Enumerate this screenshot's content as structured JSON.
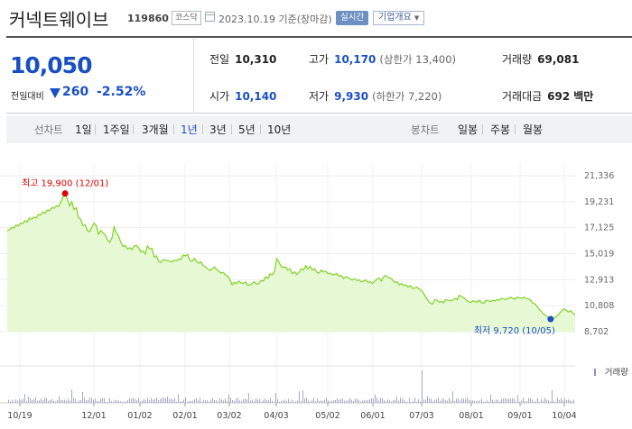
{
  "header": {
    "stock_name": "커넥트웨이브",
    "stock_code": "119860",
    "market_badge": "코스닥",
    "date_text": "2023.10.19 기준(장마감)",
    "live_button": "실시간",
    "corp_button": "기업개요",
    "icons": [
      "calendar-icon",
      "dropdown-triangle-icon"
    ]
  },
  "price": {
    "current": "10,050",
    "change_label": "전일대비",
    "change_value": "260",
    "change_pct": "-2.52%",
    "direction": "down",
    "color": "#1a4fc4"
  },
  "stats": {
    "prev_close_label": "전일",
    "prev_close": "10,310",
    "open_label": "시가",
    "open": "10,140",
    "high_label": "고가",
    "high": "10,170",
    "high_limit": "(상한가 13,400)",
    "low_label": "저가",
    "low": "9,930",
    "low_limit": "(하한가 7,220)",
    "volume_label": "거래량",
    "volume": "69,081",
    "amount_label": "거래대금",
    "amount": "692",
    "amount_unit": "백만"
  },
  "period_bar": {
    "line_chart_label": "선차트",
    "line_periods": [
      "1일",
      "1주일",
      "3개월",
      "1년",
      "3년",
      "5년",
      "10년"
    ],
    "active_period": "1년",
    "candle_label": "봉차트",
    "candle_periods": [
      "일봉",
      "주봉",
      "월봉"
    ]
  },
  "chart_data": {
    "type": "area",
    "y_ticks": [
      "21,336",
      "19,231",
      "17,125",
      "15,019",
      "12,913",
      "10,808",
      "8,702"
    ],
    "ylim": [
      8702,
      21336
    ],
    "x_ticks": [
      "10/19",
      "12/01",
      "01/02",
      "02/01",
      "03/02",
      "04/03",
      "05/02",
      "06/01",
      "07/03",
      "08/01",
      "09/01",
      "10/04"
    ],
    "high_annotation": "최고 19,900 (12/01)",
    "low_annotation": "최저 9,720 (10/05)",
    "high_value": 19900,
    "low_value": 9720,
    "volume_legend": "거래량",
    "line_color": "#7ed321",
    "fill_color": "#e6f8d4",
    "high_marker_color": "#e00000",
    "low_marker_color": "#1a4fc4",
    "series": [
      {
        "values": [
          16900,
          16950,
          17150,
          17100,
          17350,
          17250,
          17500,
          17450,
          17700,
          17600,
          17900,
          17800,
          18000,
          17900,
          18200,
          18150,
          18400,
          18300,
          18550,
          18500,
          18750,
          18700,
          18900,
          18850,
          19150,
          19600,
          19900,
          19450,
          18900,
          19250,
          18600,
          18750,
          17950,
          17800,
          17300,
          17350,
          16900,
          16800,
          17150,
          17500,
          17300,
          16600,
          16900,
          16700,
          16550,
          16150,
          15950,
          16250,
          17200,
          16700,
          16450,
          15950,
          15600,
          15700,
          15400,
          15500,
          15350,
          15650,
          15700,
          15500,
          15150,
          15250,
          15000,
          15650,
          15400,
          15450,
          14750,
          14850,
          14400,
          14300,
          14550,
          14500,
          14450,
          14400,
          14350,
          14500,
          14450,
          14600,
          14550,
          14900,
          14850,
          14950,
          14500,
          14400,
          14650,
          14400,
          14250,
          14350,
          14050,
          13950,
          13800,
          13650,
          13750,
          13950,
          13750,
          13600,
          13450,
          13500,
          13300,
          13200,
          12900,
          12500,
          12700,
          12600,
          12800,
          12650,
          12600,
          12750,
          12450,
          12500,
          12600,
          12750,
          12550,
          12600,
          12850,
          12800,
          13150,
          13000,
          13400,
          13300,
          13550,
          14600,
          14350,
          14000,
          13900,
          13950,
          13700,
          13800,
          13400,
          13550,
          13350,
          13500,
          13800,
          13700,
          14050,
          13800,
          14000,
          13700,
          13800,
          13500,
          13450,
          13700,
          13550,
          13600,
          13400,
          13450,
          13300,
          13350,
          13400,
          13200,
          13250,
          13000,
          13150,
          13100,
          12950,
          12900,
          13000,
          12850,
          12900,
          12750,
          12800,
          12900,
          12700,
          12750,
          12600,
          12800,
          12950,
          13050,
          12800,
          13150,
          13250,
          13100,
          13050,
          12900,
          12700,
          12750,
          12500,
          12600,
          12450,
          12500,
          12300,
          12450,
          12200,
          12250,
          12300,
          12150,
          12050,
          11800,
          11500,
          11200,
          11000,
          10950,
          11300,
          11250,
          11100,
          11150,
          11050,
          11300,
          11250,
          11200,
          11250,
          11400,
          11300,
          11650,
          11550,
          11450,
          11300,
          11150,
          11050,
          11200,
          11150,
          11100,
          11250,
          11050,
          11000,
          11250,
          11200,
          11150,
          11250,
          11200,
          11300,
          11250,
          11400,
          11350,
          11300,
          11400,
          11500,
          11400,
          11350,
          11500,
          11450,
          11400,
          11500,
          11400,
          11350,
          11250,
          11000,
          10950,
          10700,
          10500,
          10300,
          10100,
          10000,
          9850,
          9720,
          9800,
          9850,
          10000,
          10200,
          10400,
          10550,
          10450,
          10300,
          10400,
          10200,
          10050
        ]
      }
    ],
    "volume_spike_at": "07/03",
    "grid": true
  }
}
